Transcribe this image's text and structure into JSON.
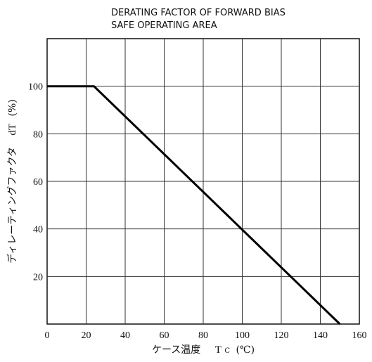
{
  "chart_data": {
    "type": "line",
    "title_line1": "DERATING FACTOR OF FORWARD BIAS",
    "title_line2": "SAFE OPERATING AREA",
    "xlabel_main": "ケース温度",
    "xlabel_symbol": "T",
    "xlabel_subscript": "C",
    "xlabel_unit": "(℃)",
    "ylabel_main": "ディレーティングファクタ",
    "ylabel_symbol": "dT",
    "ylabel_unit": "(%)",
    "xlim": [
      0,
      160
    ],
    "ylim": [
      0,
      120
    ],
    "x_ticks": [
      0,
      20,
      40,
      60,
      80,
      100,
      120,
      140,
      160
    ],
    "y_ticks": [
      20,
      40,
      60,
      80,
      100
    ],
    "x_tick_labels": [
      "0",
      "20",
      "40",
      "60",
      "80",
      "100",
      "120",
      "140",
      "160"
    ],
    "y_tick_labels": [
      "20",
      "40",
      "60",
      "80",
      "100"
    ],
    "grid": true,
    "series": [
      {
        "x": [
          0,
          24,
          150
        ],
        "y": [
          100,
          100,
          0
        ],
        "color": "#000000"
      }
    ]
  }
}
